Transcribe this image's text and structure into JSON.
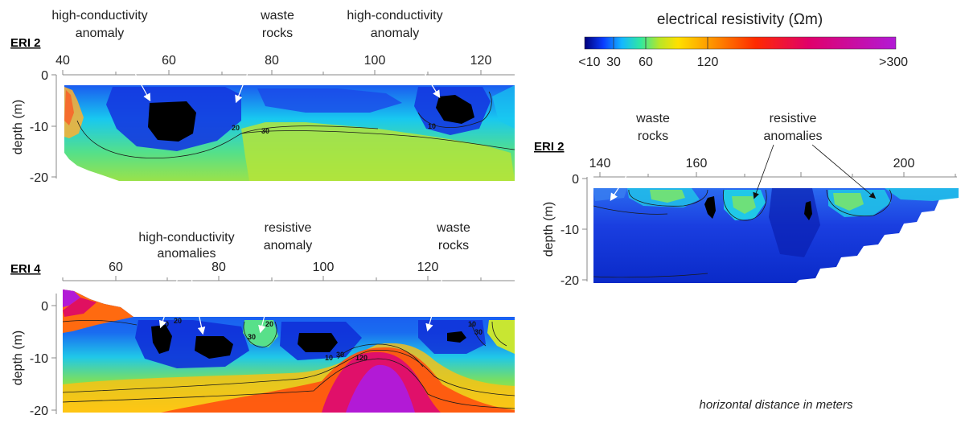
{
  "colorbar": {
    "title": "electrical resistivity (Ωm)",
    "ticks": [
      "<10",
      "30",
      "60",
      "120",
      ">300"
    ],
    "stops": [
      {
        "offset": 0.0,
        "color": "#00007a"
      },
      {
        "offset": 0.06,
        "color": "#0a3cff"
      },
      {
        "offset": 0.12,
        "color": "#14b8ff"
      },
      {
        "offset": 0.18,
        "color": "#30e8a0"
      },
      {
        "offset": 0.24,
        "color": "#b8e628"
      },
      {
        "offset": 0.3,
        "color": "#ffe000"
      },
      {
        "offset": 0.4,
        "color": "#ff9a00"
      },
      {
        "offset": 0.55,
        "color": "#ff2a00"
      },
      {
        "offset": 0.72,
        "color": "#e0006a"
      },
      {
        "offset": 1.0,
        "color": "#b21ad6"
      }
    ]
  },
  "panels": {
    "p1": {
      "label": "ERI 2",
      "x_ticks": [
        "40",
        "60",
        "80",
        "100",
        "120"
      ],
      "y_ticks": [
        "0",
        "-10",
        "-20"
      ],
      "ylabel": "depth (m)",
      "annotations": [
        "high-conductivity",
        "anomaly",
        "waste",
        "rocks",
        "high-conductivity",
        "anomaly"
      ],
      "contour_labels": [
        "20",
        "30",
        "10"
      ]
    },
    "p2": {
      "label": "ERI 4",
      "x_ticks": [
        "60",
        "80",
        "100",
        "120"
      ],
      "y_ticks": [
        "0",
        "-10",
        "-20"
      ],
      "ylabel": "depth (m)",
      "annotations": [
        "high-conductivity",
        "anomalies",
        "resistive",
        "anomaly",
        "waste",
        "rocks"
      ],
      "contour_labels": [
        "10",
        "20",
        "30",
        "20",
        "120",
        "10",
        "30",
        "10",
        "30"
      ]
    },
    "p3": {
      "label": "ERI 2",
      "x_ticks": [
        "140",
        "160",
        "200"
      ],
      "y_ticks": [
        "0",
        "-10",
        "-20"
      ],
      "ylabel": "depth (m)",
      "annotations": [
        "waste",
        "rocks",
        "resistive",
        "anomalies"
      ]
    }
  },
  "footer": "horizontal distance in meters",
  "colors": {
    "deep_blue": "#0a2ad8",
    "blue": "#1a5cf0",
    "cyan": "#18c8f0",
    "green": "#54e08a",
    "yellowgreen": "#b6e63a",
    "anomaly": "#000000"
  }
}
